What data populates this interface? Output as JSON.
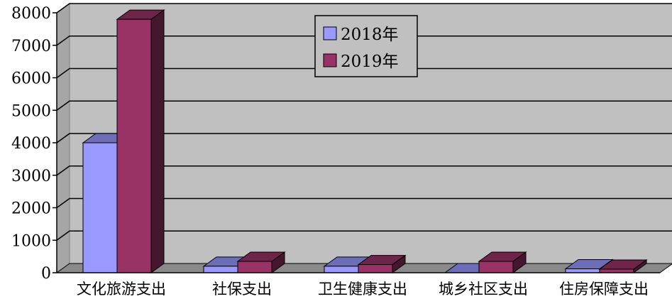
{
  "chart_data": {
    "type": "bar",
    "style": "3d-clustered-column",
    "categories": [
      "文化旅游支出",
      "社保支出",
      "卫生健康支出",
      "城乡社区支出",
      "住房保障支出"
    ],
    "series": [
      {
        "name": "2018年",
        "values": [
          4000,
          200,
          200,
          0,
          120
        ],
        "color": "#9999ff"
      },
      {
        "name": "2019年",
        "values": [
          7800,
          350,
          250,
          350,
          110
        ],
        "color": "#993366"
      }
    ],
    "yticks": [
      0,
      1000,
      2000,
      3000,
      4000,
      5000,
      6000,
      7000,
      8000
    ],
    "ylim": [
      0,
      8000
    ],
    "grid": true,
    "legend_position": "top-center",
    "plot_background": "#c0c0c0"
  }
}
